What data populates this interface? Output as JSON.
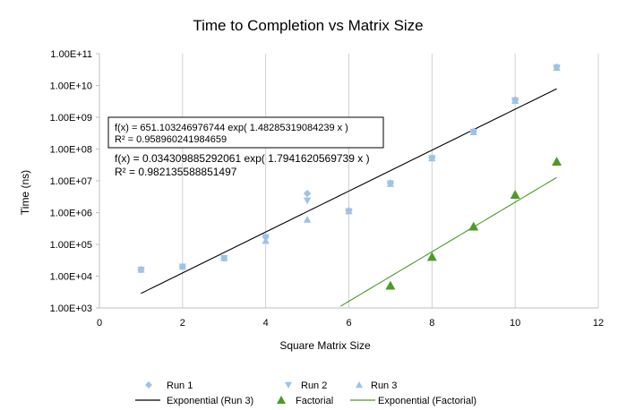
{
  "chart_data": {
    "type": "scatter",
    "title": "Time to Completion vs Matrix Size",
    "xlabel": "Square Matrix Size",
    "ylabel": "Time (ns)",
    "x_scale": "linear",
    "y_scale": "log",
    "xlim": [
      0,
      12
    ],
    "ylim": [
      1000,
      100000000000
    ],
    "x_ticks": [
      0,
      2,
      4,
      6,
      8,
      10,
      12
    ],
    "y_ticks": [
      {
        "value": 1000,
        "label": "1.00E+03"
      },
      {
        "value": 10000,
        "label": "1.00E+04"
      },
      {
        "value": 100000,
        "label": "1.00E+05"
      },
      {
        "value": 1000000,
        "label": "1.00E+06"
      },
      {
        "value": 10000000,
        "label": "1.00E+07"
      },
      {
        "value": 100000000,
        "label": "1.00E+08"
      },
      {
        "value": 1000000000,
        "label": "1.00E+09"
      },
      {
        "value": 10000000000,
        "label": "1.00E+10"
      },
      {
        "value": 100000000000,
        "label": "1.00E+11"
      }
    ],
    "grid": {
      "vertical": true,
      "horizontal": false
    },
    "legend_position": "bottom",
    "series": [
      {
        "name": "Run 1",
        "marker": "diamond",
        "color": "#9DC3E6",
        "points": [
          [
            1,
            16000
          ],
          [
            2,
            20000
          ],
          [
            3,
            37000
          ],
          [
            4,
            170000
          ],
          [
            5,
            4000000
          ],
          [
            6,
            1150000
          ],
          [
            7,
            8500000
          ],
          [
            8,
            53000000
          ],
          [
            9,
            360000000
          ],
          [
            10,
            3500000000
          ],
          [
            11,
            38000000000
          ]
        ]
      },
      {
        "name": "Run 2",
        "marker": "triangle-down",
        "color": "#9DC3E6",
        "points": [
          [
            1,
            16000
          ],
          [
            2,
            20000
          ],
          [
            3,
            37000
          ],
          [
            4,
            170000
          ],
          [
            5,
            2400000
          ],
          [
            6,
            1100000
          ],
          [
            7,
            8300000
          ],
          [
            8,
            52000000
          ],
          [
            9,
            350000000
          ],
          [
            10,
            3400000000
          ],
          [
            11,
            37000000000
          ]
        ]
      },
      {
        "name": "Run 3",
        "marker": "triangle-up",
        "color": "#9DC3E6",
        "points": [
          [
            1,
            16000
          ],
          [
            2,
            20000
          ],
          [
            3,
            37000
          ],
          [
            4,
            130000
          ],
          [
            5,
            600000
          ],
          [
            6,
            1100000
          ],
          [
            7,
            8000000
          ],
          [
            8,
            51000000
          ],
          [
            9,
            340000000
          ],
          [
            10,
            3300000000
          ],
          [
            11,
            36000000000
          ]
        ]
      },
      {
        "name": "Factorial",
        "marker": "triangle-up",
        "color": "#4E9A28",
        "points": [
          [
            7,
            5040
          ],
          [
            8,
            40320
          ],
          [
            9,
            362880
          ],
          [
            10,
            3628800
          ],
          [
            11,
            39916800
          ]
        ]
      }
    ],
    "trendlines": [
      {
        "name": "Exponential (Run 3)",
        "color": "#000000",
        "a": 651.103246976744,
        "b": 1.48285319084239,
        "x_range": [
          1,
          11
        ]
      },
      {
        "name": "Exponential (Factorial)",
        "color": "#4E9A28",
        "a": 0.034309885292061,
        "b": 1.7941620569739,
        "x_range": [
          5.8,
          11
        ]
      }
    ],
    "annotations": [
      {
        "line1": "f(x) = 651.103246976744 exp( 1.48285319084239 x )",
        "line2": "R² = 0.958960241984659",
        "boxed": true
      },
      {
        "line1": "f(x) = 0.034309885292061 exp( 1.7941620569739 x )",
        "line2": "R² = 0.982135588851497",
        "boxed": false
      }
    ],
    "legend": [
      {
        "label": "Run 1",
        "marker": "diamond",
        "color": "#9DC3E6"
      },
      {
        "label": "Run 2",
        "marker": "triangle-down",
        "color": "#9DC3E6"
      },
      {
        "label": "Run 3",
        "marker": "triangle-up",
        "color": "#9DC3E6"
      },
      {
        "label": "Exponential (Run 3)",
        "marker": "line",
        "color": "#000000"
      },
      {
        "label": "Factorial",
        "marker": "triangle-up",
        "color": "#4E9A28"
      },
      {
        "label": "Exponential (Factorial)",
        "marker": "line",
        "color": "#4E9A28"
      }
    ]
  }
}
